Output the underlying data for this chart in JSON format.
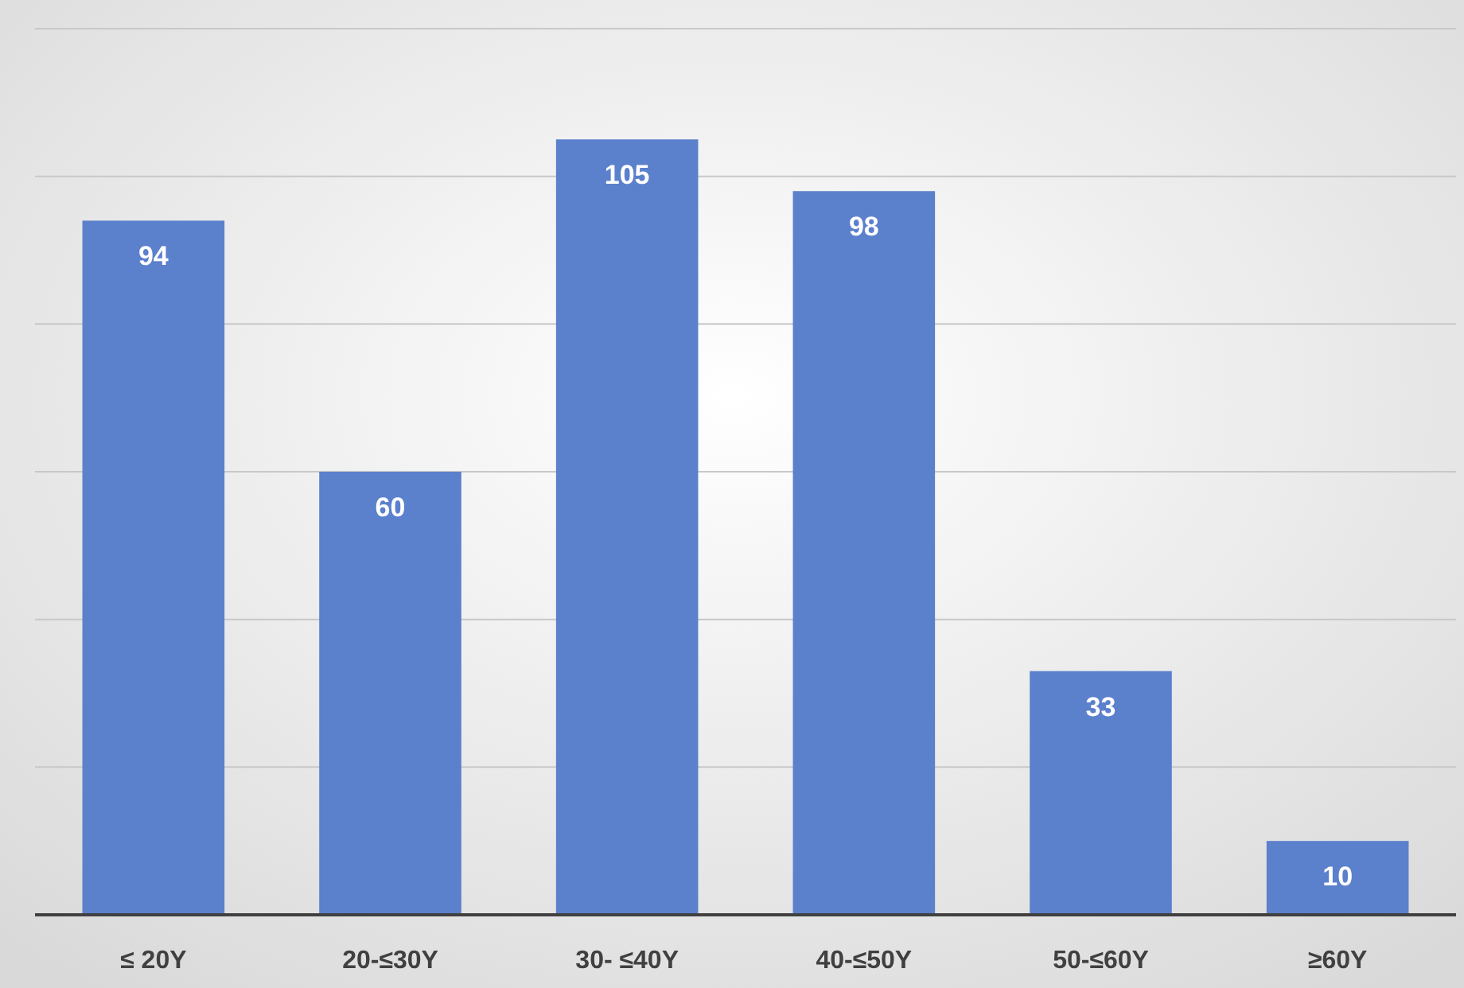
{
  "chart_data": {
    "type": "bar",
    "categories": [
      "≤ 20Y",
      "20-≤30Y",
      "30- ≤40Y",
      "40-≤50Y",
      "50-≤60Y",
      "≥60Y"
    ],
    "values": [
      94,
      60,
      105,
      98,
      33,
      10
    ],
    "color": "#5b80cc",
    "ylim": [
      0,
      120
    ],
    "yticks": [
      {
        "value": 0,
        "label": null
      },
      {
        "value": 20,
        "label": null
      },
      {
        "value": 40,
        "label": null
      },
      {
        "value": 60,
        "label": null
      },
      {
        "value": 80,
        "label": null
      },
      {
        "value": 100,
        "label": null
      },
      {
        "value": 120,
        "label": null
      }
    ],
    "tick_labels": "x",
    "grid": "y",
    "data_labels": true
  }
}
